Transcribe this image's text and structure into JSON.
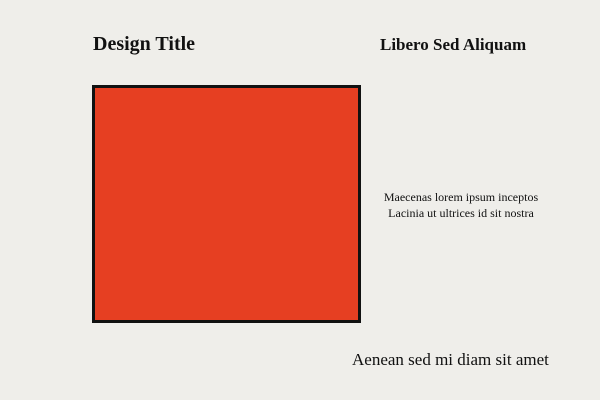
{
  "header": {
    "title": "Design Title",
    "subtitle": "Libero Sed Aliquam"
  },
  "artwork": {
    "fill_color": "#e63f22",
    "border_color": "#111111"
  },
  "caption": {
    "line1": "Maecenas lorem ipsum inceptos",
    "line2": "Lacinia ut ultrices id sit nostra"
  },
  "footer": {
    "text": "Aenean sed mi diam sit amet"
  }
}
